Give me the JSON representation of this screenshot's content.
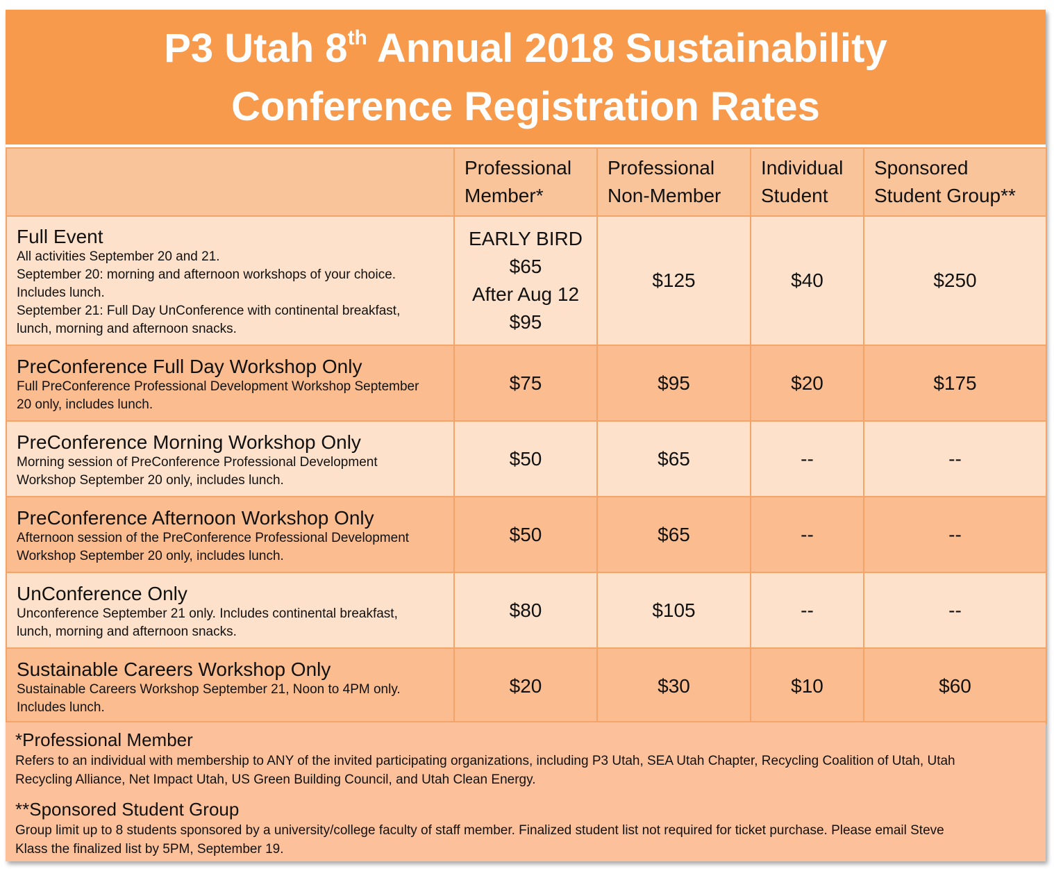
{
  "title": {
    "line1_pre": "P3 Utah 8",
    "line1_sup": "th",
    "line1_post": " Annual 2018 Sustainability",
    "line2": "Conference Registration Rates"
  },
  "columns": [
    {
      "line1": "Professional",
      "line2": "Member*"
    },
    {
      "line1": "Professional",
      "line2": "Non-Member"
    },
    {
      "line1": "Individual",
      "line2": "Student"
    },
    {
      "line1": "Sponsored",
      "line2": "Student Group**"
    }
  ],
  "rows": [
    {
      "title": "Full Event",
      "desc": [
        "All activities September 20 and 21.",
        "September 20: morning and afternoon workshops of your choice.",
        "Includes lunch.",
        "September 21: Full Day UnConference with continental breakfast,",
        "lunch, morning and afternoon snacks."
      ],
      "member_lines": [
        "EARLY BIRD",
        "$65",
        "After Aug 12",
        "$95"
      ],
      "non_member": "$125",
      "student": "$40",
      "group": "$250"
    },
    {
      "title": "PreConference Full Day Workshop Only",
      "desc": [
        "Full PreConference Professional Development Workshop September",
        "20 only, includes lunch."
      ],
      "member": "$75",
      "non_member": "$95",
      "student": "$20",
      "group": "$175"
    },
    {
      "title": "PreConference Morning Workshop Only",
      "desc": [
        "Morning session of PreConference Professional Development",
        "Workshop September 20 only, includes lunch."
      ],
      "member": "$50",
      "non_member": "$65",
      "student": "--",
      "group": "--"
    },
    {
      "title": "PreConference Afternoon Workshop Only",
      "desc": [
        "Afternoon session of the PreConference Professional Development",
        "Workshop September 20 only, includes lunch."
      ],
      "member": "$50",
      "non_member": "$65",
      "student": "--",
      "group": "--"
    },
    {
      "title": "UnConference Only",
      "desc": [
        "Unconference September 21 only. Includes continental breakfast,",
        "lunch, morning and afternoon snacks."
      ],
      "member": "$80",
      "non_member": "$105",
      "student": "--",
      "group": "--"
    },
    {
      "title": "Sustainable Careers Workshop Only",
      "desc": [
        "Sustainable Careers Workshop September 21, Noon to 4PM only.",
        "Includes lunch."
      ],
      "member": "$20",
      "non_member": "$30",
      "student": "$10",
      "group": "$60"
    }
  ],
  "notes": {
    "member_title": "*Professional Member",
    "member_body": [
      "Refers to an individual with membership to ANY of the invited participating organizations, including P3 Utah, SEA Utah Chapter, Recycling Coalition of Utah, Utah",
      "Recycling Alliance, Net Impact Utah, US Green Building Council, and Utah Clean Energy."
    ],
    "group_title": "**Sponsored Student Group",
    "group_body": [
      "Group limit up to 8 students sponsored by a university/college faculty of staff member. Finalized student list not required for ticket purchase. Please email Steve",
      "Klass the finalized list by 5PM, September 19."
    ]
  },
  "colors": {
    "title_bg": "#f79a4c",
    "header_bg": "#f9c49a",
    "row_light": "#fde1cb",
    "row_dark": "#fbbd8f",
    "grid": "#f5a469"
  }
}
